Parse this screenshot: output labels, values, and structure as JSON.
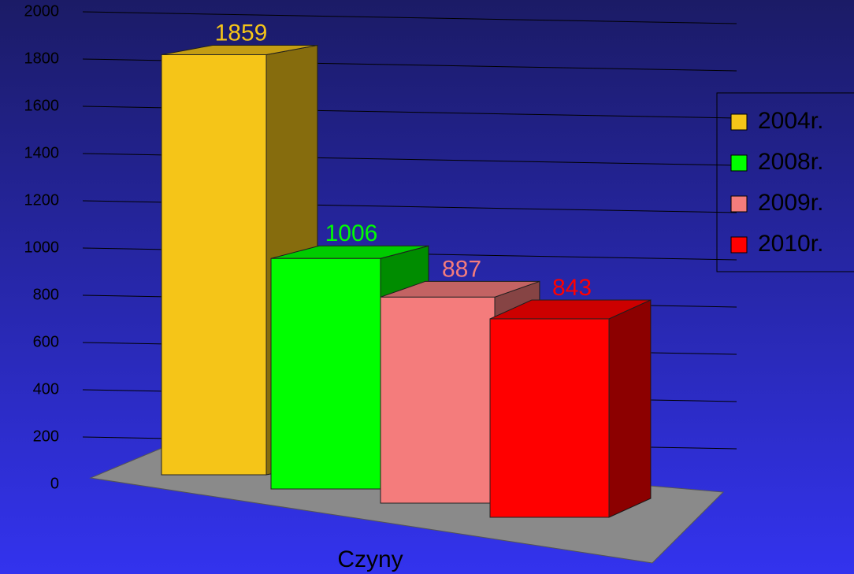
{
  "chart_data": {
    "type": "bar3d",
    "categories": [
      "Czyny"
    ],
    "series": [
      {
        "name": "2004r.",
        "color": "#f5c518",
        "values": [
          1859
        ]
      },
      {
        "name": "2008r.",
        "color": "#00ff00",
        "values": [
          1006
        ]
      },
      {
        "name": "2009r.",
        "color": "#f47c7c",
        "values": [
          887
        ]
      },
      {
        "name": "2010r.",
        "color": "#ff0000",
        "values": [
          843
        ]
      }
    ],
    "ylim": [
      0,
      2000
    ],
    "yticks": [
      0,
      200,
      400,
      600,
      800,
      1000,
      1200,
      1400,
      1600,
      1800,
      2000
    ],
    "grid": true,
    "legend": "right"
  }
}
